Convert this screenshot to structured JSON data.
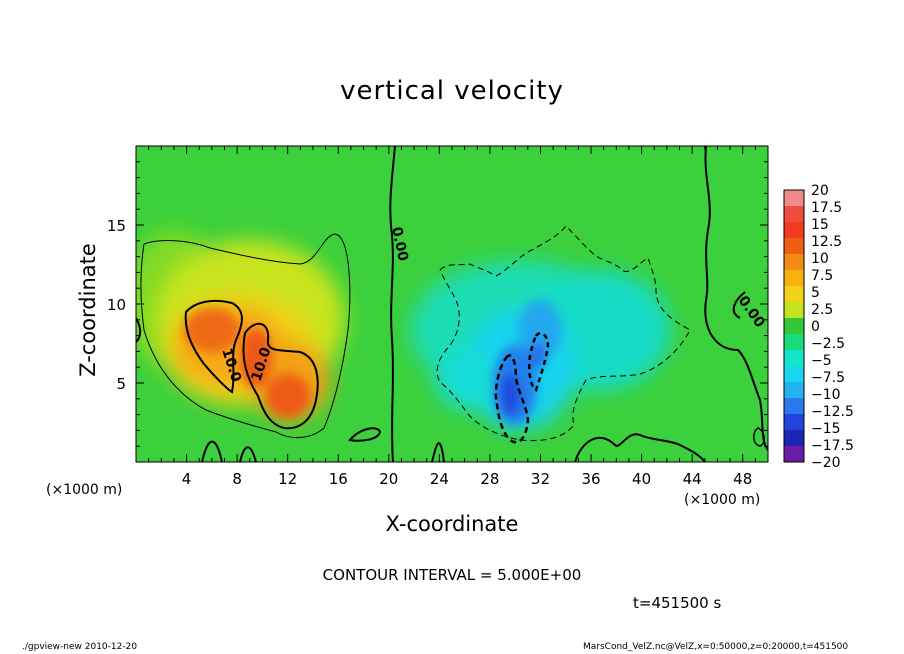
{
  "chart_data": {
    "type": "heatmap",
    "title": "vertical velocity",
    "xlabel": "X-coordinate",
    "ylabel": "Z-coordinate",
    "x_unit": "(×1000 m)",
    "xlim": [
      0,
      50
    ],
    "ylim": [
      0,
      20
    ],
    "x_ticks": [
      "4",
      "8",
      "12",
      "16",
      "20",
      "24",
      "28",
      "32",
      "36",
      "40",
      "44",
      "48"
    ],
    "y_ticks": [
      "5",
      "10",
      "15"
    ],
    "x_tick_values": [
      4,
      8,
      12,
      16,
      20,
      24,
      28,
      32,
      36,
      40,
      44,
      48
    ],
    "y_tick_values": [
      5,
      10,
      15
    ],
    "colorbar": {
      "labels": [
        "20",
        "17.5",
        "15",
        "12.5",
        "10",
        "7.5",
        "5",
        "2.5",
        "0",
        "−2.5",
        "−5",
        "−7.5",
        "−10",
        "−12.5",
        "−15",
        "−17.5",
        "−20"
      ],
      "colors": [
        "#f08a8a",
        "#f04b3c",
        "#f23a1e",
        "#ef5f12",
        "#f38a12",
        "#f8b10e",
        "#f2d21a",
        "#c4e31c",
        "#33c83a",
        "#18dc7a",
        "#12e6c8",
        "#17d6ee",
        "#22b4ef",
        "#2a78ee",
        "#2244dc",
        "#1c26b4",
        "#6a1ca6"
      ]
    },
    "contour_labels": [
      "0.00",
      "10.0",
      "10.0",
      "0.00"
    ],
    "contour_interval": "CONTOUR INTERVAL = 5.000E+00",
    "time": "t=451500 s"
  },
  "footer": {
    "left": "./gpview-new   2010-12-20",
    "right": "MarsCond_VelZ.nc@VelZ,x=0:50000,z=0:20000,t=451500"
  }
}
